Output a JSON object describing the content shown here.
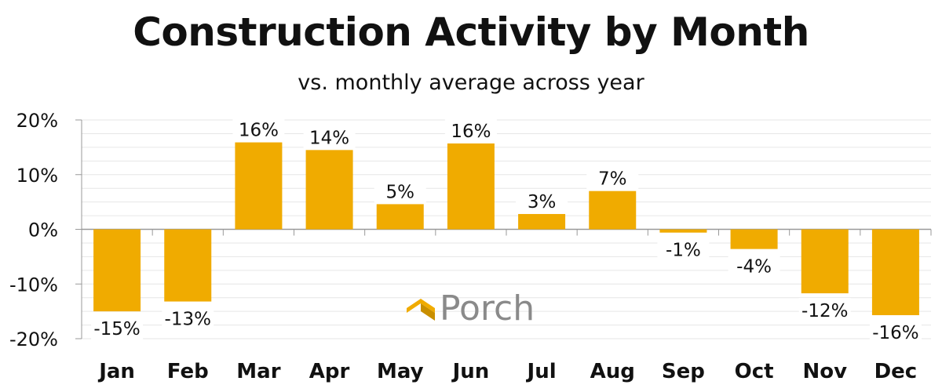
{
  "chart_data": {
    "type": "bar",
    "title": "Construction Activity by Month",
    "subtitle": "vs. monthly average across year",
    "categories": [
      "Jan",
      "Feb",
      "Mar",
      "Apr",
      "May",
      "Jun",
      "Jul",
      "Aug",
      "Sep",
      "Oct",
      "Nov",
      "Dec"
    ],
    "values": [
      -15.0,
      -13.2,
      15.9,
      14.5,
      4.6,
      15.7,
      2.8,
      7.0,
      -0.6,
      -3.6,
      -11.7,
      -15.7
    ],
    "data_labels": [
      "-15%",
      "-13%",
      "16%",
      "14%",
      "5%",
      "16%",
      "3%",
      "7%",
      "-1%",
      "-4%",
      "-12%",
      "-16%"
    ],
    "yticks": [
      -20,
      -10,
      0,
      10,
      20
    ],
    "ytick_labels": [
      "-20%",
      "-10%",
      "0%",
      "10%",
      "20%"
    ],
    "ylim": [
      -20,
      20
    ],
    "xlabel": "",
    "ylabel": "",
    "grid": true,
    "colors": {
      "bar": "#F0AB00",
      "grid": "#e6e6e6",
      "axis": "#999999",
      "text": "#111111"
    }
  },
  "branding": {
    "logo_text": "Porch",
    "logo_color": "#F0AB00",
    "logo_text_color": "#8a8a8a"
  }
}
